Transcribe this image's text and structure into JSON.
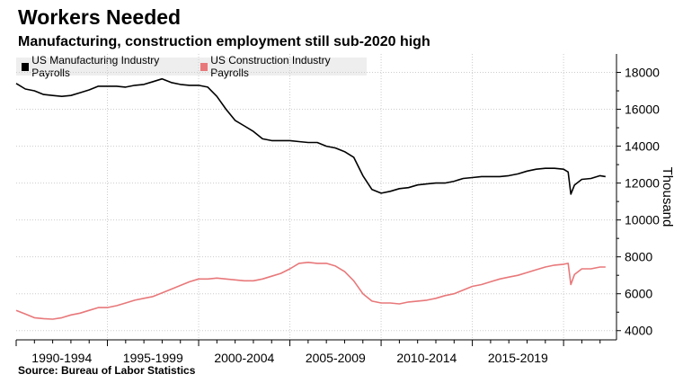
{
  "header": {
    "title": "Workers Needed",
    "subtitle": "Manufacturing, construction employment still sub-2020 high"
  },
  "footer": {
    "source": "Source: Bureau of Labor Statistics"
  },
  "chart_data": {
    "type": "line",
    "title": "Workers Needed",
    "subtitle": "Manufacturing, construction employment still sub-2020 high",
    "ylabel": "Thousand",
    "xlabel": "",
    "xlim": [
      1990.0,
      2022.9
    ],
    "ylim": [
      3500,
      19000
    ],
    "y_ticks": [
      4000,
      6000,
      8000,
      10000,
      12000,
      14000,
      16000,
      18000
    ],
    "x_tick_labels": [
      "1990-1994",
      "1995-1999",
      "2000-2004",
      "2005-2009",
      "2010-2014",
      "2015-2019"
    ],
    "x_tick_centers": [
      1992.5,
      1997.5,
      2002.5,
      2007.5,
      2012.5,
      2017.5
    ],
    "x_gridlines": [
      1995,
      2000,
      2005,
      2010,
      2015,
      2020
    ],
    "legend": "top-left",
    "series": [
      {
        "name": "US Manufacturing Industry Payrolls",
        "color": "#000000",
        "x": [
          1990.0,
          1990.5,
          1991.0,
          1991.5,
          1992.0,
          1992.5,
          1993.0,
          1993.5,
          1994.0,
          1994.5,
          1995.0,
          1995.5,
          1996.0,
          1996.5,
          1997.0,
          1997.5,
          1998.0,
          1998.5,
          1999.0,
          1999.5,
          2000.0,
          2000.5,
          2001.0,
          2001.5,
          2002.0,
          2002.5,
          2003.0,
          2003.5,
          2004.0,
          2004.5,
          2005.0,
          2005.5,
          2006.0,
          2006.5,
          2007.0,
          2007.5,
          2008.0,
          2008.5,
          2009.0,
          2009.5,
          2010.0,
          2010.5,
          2011.0,
          2011.5,
          2012.0,
          2012.5,
          2013.0,
          2013.5,
          2014.0,
          2014.5,
          2015.0,
          2015.5,
          2016.0,
          2016.5,
          2017.0,
          2017.5,
          2018.0,
          2018.5,
          2019.0,
          2019.5,
          2020.0,
          2020.25,
          2020.4,
          2020.6,
          2021.0,
          2021.5,
          2022.0,
          2022.3
        ],
        "values": [
          17400,
          17100,
          17000,
          16800,
          16750,
          16700,
          16750,
          16900,
          17050,
          17250,
          17250,
          17250,
          17200,
          17300,
          17350,
          17500,
          17650,
          17450,
          17350,
          17300,
          17300,
          17200,
          16700,
          16000,
          15400,
          15100,
          14800,
          14400,
          14300,
          14300,
          14300,
          14250,
          14200,
          14200,
          14000,
          13900,
          13700,
          13400,
          12400,
          11650,
          11450,
          11550,
          11700,
          11750,
          11900,
          11950,
          12000,
          12000,
          12100,
          12250,
          12300,
          12350,
          12350,
          12350,
          12400,
          12500,
          12650,
          12750,
          12800,
          12800,
          12750,
          12600,
          11400,
          11900,
          12200,
          12250,
          12400,
          12350
        ]
      },
      {
        "name": "US Construction Industry Payrolls",
        "color": "#e8787a",
        "x": [
          1990.0,
          1990.5,
          1991.0,
          1991.5,
          1992.0,
          1992.5,
          1993.0,
          1993.5,
          1994.0,
          1994.5,
          1995.0,
          1995.5,
          1996.0,
          1996.5,
          1997.0,
          1997.5,
          1998.0,
          1998.5,
          1999.0,
          1999.5,
          2000.0,
          2000.5,
          2001.0,
          2001.5,
          2002.0,
          2002.5,
          2003.0,
          2003.5,
          2004.0,
          2004.5,
          2005.0,
          2005.5,
          2006.0,
          2006.5,
          2007.0,
          2007.5,
          2008.0,
          2008.5,
          2009.0,
          2009.5,
          2010.0,
          2010.5,
          2011.0,
          2011.5,
          2012.0,
          2012.5,
          2013.0,
          2013.5,
          2014.0,
          2014.5,
          2015.0,
          2015.5,
          2016.0,
          2016.5,
          2017.0,
          2017.5,
          2018.0,
          2018.5,
          2019.0,
          2019.5,
          2020.0,
          2020.25,
          2020.4,
          2020.6,
          2021.0,
          2021.5,
          2022.0,
          2022.3
        ],
        "values": [
          5100,
          4900,
          4700,
          4650,
          4620,
          4700,
          4850,
          4950,
          5100,
          5250,
          5250,
          5350,
          5500,
          5650,
          5750,
          5850,
          6050,
          6250,
          6450,
          6650,
          6800,
          6800,
          6850,
          6800,
          6750,
          6700,
          6700,
          6800,
          6950,
          7100,
          7350,
          7650,
          7700,
          7650,
          7650,
          7500,
          7200,
          6700,
          6000,
          5600,
          5500,
          5500,
          5450,
          5550,
          5600,
          5650,
          5750,
          5900,
          6000,
          6200,
          6400,
          6500,
          6650,
          6800,
          6900,
          7000,
          7150,
          7300,
          7450,
          7550,
          7600,
          7650,
          6500,
          7050,
          7350,
          7350,
          7450,
          7450
        ]
      }
    ]
  }
}
